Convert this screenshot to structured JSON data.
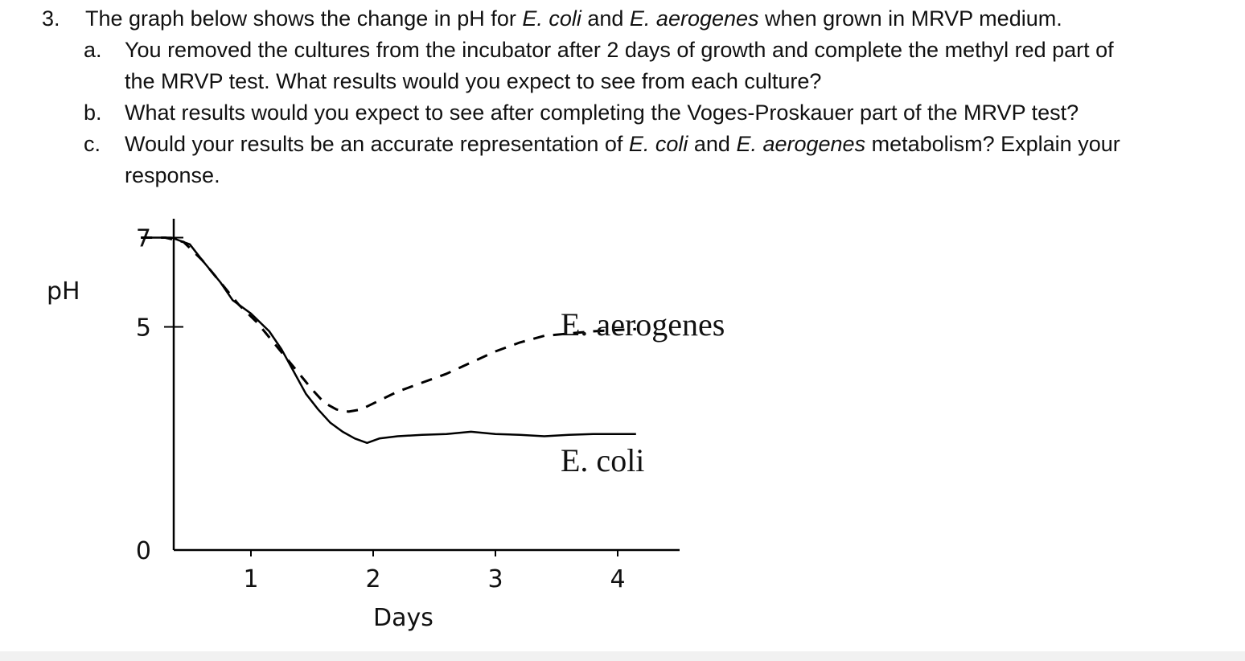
{
  "question": {
    "number": "3.",
    "stem_parts": [
      "The graph below shows the change in pH for ",
      "E. coli",
      " and ",
      "E. aerogenes",
      " when grown in MRVP medium."
    ],
    "a": {
      "label": "a.",
      "line1": "You removed the cultures from the incubator after 2 days of growth and complete the methyl red part of",
      "line2": "the MRVP test. What results would you expect to see from each culture?"
    },
    "b": {
      "label": "b.",
      "text": "What results would you expect to see after completing the Voges-Proskauer part of the MRVP test?"
    },
    "c": {
      "label": "c.",
      "line1_parts": [
        "Would your results be an accurate representation of ",
        "E. coli",
        " and ",
        "E. aerogenes",
        " metabolism? Explain your"
      ],
      "line2": "response."
    }
  },
  "chart_data": {
    "type": "line",
    "xlabel": "Days",
    "ylabel": "pH",
    "x_ticks": [
      1,
      2,
      3,
      4
    ],
    "y_ticks": [
      0,
      5,
      7
    ],
    "xlim": [
      0,
      4.35
    ],
    "grid": false,
    "series": [
      {
        "name": "E. aerogenes",
        "style": "dashed",
        "color": "#000000",
        "points": [
          [
            0.1,
            7.0
          ],
          [
            0.3,
            7.0
          ],
          [
            0.45,
            6.9
          ],
          [
            0.6,
            6.5
          ],
          [
            0.75,
            6.0
          ],
          [
            0.9,
            5.5
          ],
          [
            1.05,
            5.1
          ],
          [
            1.2,
            4.6
          ],
          [
            1.35,
            4.1
          ],
          [
            1.5,
            3.6
          ],
          [
            1.6,
            3.3
          ],
          [
            1.7,
            3.15
          ],
          [
            1.8,
            3.1
          ],
          [
            1.9,
            3.15
          ],
          [
            2.05,
            3.35
          ],
          [
            2.2,
            3.55
          ],
          [
            2.4,
            3.75
          ],
          [
            2.6,
            3.95
          ],
          [
            2.8,
            4.2
          ],
          [
            3.0,
            4.45
          ],
          [
            3.2,
            4.65
          ],
          [
            3.4,
            4.8
          ],
          [
            3.6,
            4.85
          ],
          [
            3.8,
            4.9
          ],
          [
            4.0,
            4.93
          ],
          [
            4.15,
            4.95
          ]
        ]
      },
      {
        "name": "E. coli",
        "style": "solid",
        "color": "#000000",
        "points": [
          [
            0.1,
            7.0
          ],
          [
            0.35,
            7.0
          ],
          [
            0.5,
            6.85
          ],
          [
            0.6,
            6.5
          ],
          [
            0.75,
            6.0
          ],
          [
            0.85,
            5.6
          ],
          [
            1.0,
            5.3
          ],
          [
            1.15,
            4.9
          ],
          [
            1.25,
            4.5
          ],
          [
            1.35,
            4.0
          ],
          [
            1.45,
            3.5
          ],
          [
            1.55,
            3.15
          ],
          [
            1.65,
            2.85
          ],
          [
            1.75,
            2.65
          ],
          [
            1.85,
            2.5
          ],
          [
            1.95,
            2.4
          ],
          [
            2.05,
            2.5
          ],
          [
            2.2,
            2.55
          ],
          [
            2.4,
            2.58
          ],
          [
            2.6,
            2.6
          ],
          [
            2.8,
            2.65
          ],
          [
            3.0,
            2.6
          ],
          [
            3.2,
            2.58
          ],
          [
            3.4,
            2.55
          ],
          [
            3.6,
            2.58
          ],
          [
            3.8,
            2.6
          ],
          [
            4.0,
            2.6
          ],
          [
            4.15,
            2.6
          ]
        ]
      }
    ]
  }
}
